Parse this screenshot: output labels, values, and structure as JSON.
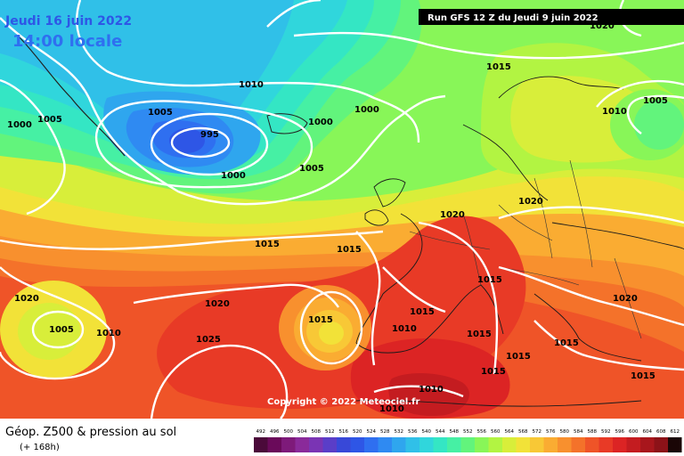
{
  "header": {
    "date": "Jeudi 16 juin 2022",
    "time": "14:00 locale",
    "run": "Run GFS 12 Z du Jeudi 9 juin 2022"
  },
  "footer": {
    "title": "Géop. Z500 & pression au sol",
    "lead": "(+ 168h)",
    "copyright": "Copyright © 2022 Meteociel.fr"
  },
  "legend": {
    "values": [
      "492",
      "496",
      "500",
      "504",
      "508",
      "512",
      "516",
      "520",
      "524",
      "528",
      "532",
      "536",
      "540",
      "544",
      "548",
      "552",
      "556",
      "560",
      "564",
      "568",
      "572",
      "576",
      "580",
      "584",
      "588",
      "592",
      "596",
      "600",
      "604",
      "608",
      "612"
    ],
    "colors": [
      "#4b0a3a",
      "#6a0a5a",
      "#7e1a7a",
      "#8a2a9a",
      "#7a34b4",
      "#5a3ec8",
      "#3848d8",
      "#2e56e6",
      "#2f6ff0",
      "#2f8af2",
      "#2fa6ee",
      "#30c0e8",
      "#30d6dc",
      "#34e6c4",
      "#46f0a4",
      "#62f47c",
      "#88f658",
      "#b2f442",
      "#d8ee3a",
      "#f2e238",
      "#f8c836",
      "#faac32",
      "#f8902e",
      "#f4722a",
      "#ef5428",
      "#e83a26",
      "#dc2424",
      "#c41c20",
      "#a8161c",
      "#8c1218",
      "#1a0606"
    ]
  },
  "pressure_labels": [
    {
      "text": "995",
      "name": "low-center-995"
    },
    {
      "text": "1000",
      "name": "isobar-label"
    },
    {
      "text": "1005",
      "name": "isobar-label"
    },
    {
      "text": "1010",
      "name": "isobar-label"
    },
    {
      "text": "1015",
      "name": "isobar-label"
    },
    {
      "text": "1020",
      "name": "isobar-label"
    },
    {
      "text": "1025",
      "name": "isobar-label"
    }
  ]
}
